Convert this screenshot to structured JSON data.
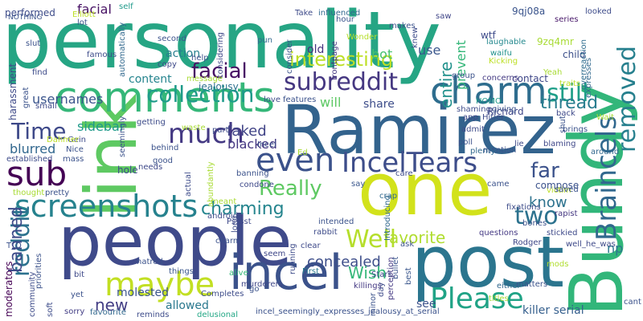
{
  "word_cloud": {
    "words": [
      {
        "text": "personality",
        "color": "#26a584"
      },
      {
        "text": "Ramirez",
        "color": "#33638d"
      },
      {
        "text": "people",
        "color": "#3f4a8a"
      },
      {
        "text": "one",
        "color": "#d2e21b"
      },
      {
        "text": "post",
        "color": "#2b758e"
      },
      {
        "text": "link",
        "color": "#5ec962"
      },
      {
        "text": "Bundy",
        "color": "#32b67a"
      },
      {
        "text": "comments",
        "color": "#35b779"
      },
      {
        "text": "incel",
        "color": "#3b528b"
      },
      {
        "text": "charm",
        "color": "#2e6d8e"
      },
      {
        "text": "maybe",
        "color": "#c2df23"
      },
      {
        "text": "screenshots",
        "color": "#26828e"
      },
      {
        "text": "sub",
        "color": "#440154"
      },
      {
        "text": "Please",
        "color": "#20a386"
      },
      {
        "text": "even",
        "color": "#3b528b"
      },
      {
        "text": "IncelTears",
        "color": "#3d4d8a"
      },
      {
        "text": "subreddit",
        "color": "#453781"
      },
      {
        "text": "collection",
        "color": "#1e9b8a"
      },
      {
        "text": "much",
        "color": "#443983"
      },
      {
        "text": "Braincels",
        "color": "#31688e"
      },
      {
        "text": "Well",
        "color": "#b5de2b"
      },
      {
        "text": "removed",
        "color": "#27808e"
      },
      {
        "text": "reddit",
        "color": "#2c728e"
      },
      {
        "text": "still",
        "color": "#1f9f88"
      },
      {
        "text": "Time",
        "color": "#3e4989"
      },
      {
        "text": "two",
        "color": "#2c728e"
      },
      {
        "text": "Really",
        "color": "#5ec962"
      },
      {
        "text": "facial",
        "color": "#471164"
      },
      {
        "text": "interesting",
        "color": "#bddf26"
      },
      {
        "text": "entire",
        "color": "#21918c"
      },
      {
        "text": "thread",
        "color": "#287d8e"
      },
      {
        "text": "banned",
        "color": "#3e4c8a"
      },
      {
        "text": "far",
        "color": "#3b528b"
      },
      {
        "text": "charming",
        "color": "#25858e"
      },
      {
        "text": "favorite",
        "color": "#b0dd2f"
      },
      {
        "text": "concealed",
        "color": "#3d4e8a"
      },
      {
        "text": "new",
        "color": "#433e85"
      },
      {
        "text": "Wish",
        "color": "#35b779"
      },
      {
        "text": "know",
        "color": "#2c728e"
      },
      {
        "text": "faked",
        "color": "#414487"
      },
      {
        "text": "blacked",
        "color": "#453882"
      },
      {
        "text": "sidebar",
        "color": "#1f9a8a"
      },
      {
        "text": "blurred",
        "color": "#31678e"
      },
      {
        "text": "usernames",
        "color": "#3a548c"
      },
      {
        "text": "content",
        "color": "#25848e"
      },
      {
        "text": "action",
        "color": "#277f8e"
      },
      {
        "text": "bot",
        "color": "#46c06f"
      },
      {
        "text": "use",
        "color": "#39568c"
      },
      {
        "text": "will",
        "color": "#5cc863"
      },
      {
        "text": "share",
        "color": "#3d4d8a"
      },
      {
        "text": "np",
        "color": "#2a768e"
      },
      {
        "text": "allowed",
        "color": "#2a788e"
      },
      {
        "text": "see",
        "color": "#3b528b"
      },
      {
        "text": "molested",
        "color": "#3a548c"
      },
      {
        "text": "killer serial",
        "color": "#355f8d"
      },
      {
        "text": "prevent",
        "color": "#35b779"
      },
      {
        "text": "old",
        "color": "#46327e"
      },
      {
        "text": "Richard",
        "color": "#3f4788"
      },
      {
        "text": "compose",
        "color": "#3b528b"
      },
      {
        "text": "harassment",
        "color": "#3e4a89"
      },
      {
        "text": "moderators",
        "color": "#440154"
      },
      {
        "text": "jealousy",
        "color": "#2d708e"
      },
      {
        "text": "Wonder",
        "color": "#b5de2b"
      },
      {
        "text": "contact",
        "color": "#3f4788"
      },
      {
        "text": "child",
        "color": "#3c4f8a"
      },
      {
        "text": "concerns",
        "color": "#443a83"
      },
      {
        "text": "expresses",
        "color": "#31688e"
      },
      {
        "text": "overreaction",
        "color": "#2f6c8e"
      },
      {
        "text": "9qj08a",
        "color": "#3a548c"
      },
      {
        "text": "9zq4mr",
        "color": "#a8db34"
      },
      {
        "text": "wtf",
        "color": "#3e4c8a"
      },
      {
        "text": "series",
        "color": "#48186a"
      },
      {
        "text": "laughable",
        "color": "#23898e"
      },
      {
        "text": "waifu",
        "color": "#21918c"
      },
      {
        "text": "frontpage",
        "color": "#453781"
      },
      {
        "text": "pun",
        "color": "#31688e"
      },
      {
        "text": "hour",
        "color": "#3a548c"
      },
      {
        "text": "saw",
        "color": "#404688"
      },
      {
        "text": "performed",
        "color": "#3e4c8a"
      },
      {
        "text": "facial",
        "color": "#471164"
      },
      {
        "text": "Elliott",
        "color": "#bddf26"
      },
      {
        "text": "NOTHING",
        "color": "#3b528b"
      },
      {
        "text": "self",
        "color": "#1f9a8a"
      },
      {
        "text": "Take",
        "color": "#3e4a89"
      },
      {
        "text": "influenced",
        "color": "#31688e"
      },
      {
        "text": "incel_seemingly_expresses_jealousy_at_serial",
        "color": "#3b528b"
      },
      {
        "text": "Completes",
        "color": "#3e4c8a"
      },
      {
        "text": "delusional",
        "color": "#22a785"
      },
      {
        "text": "reminds",
        "color": "#3e4c8a"
      },
      {
        "text": "favourite",
        "color": "#31688e"
      },
      {
        "text": "sorry",
        "color": "#433e85"
      },
      {
        "text": "yet",
        "color": "#3b528b"
      },
      {
        "text": "alive",
        "color": "#35b779"
      },
      {
        "text": "things",
        "color": "#39568c"
      },
      {
        "text": "bit",
        "color": "#3e4989"
      },
      {
        "text": "hatred",
        "color": "#3b528b"
      },
      {
        "text": "murderers",
        "color": "#3f4788"
      },
      {
        "text": "killings",
        "color": "#443983"
      },
      {
        "text": "Stars",
        "color": "#3e4c8a"
      },
      {
        "text": "First",
        "color": "#2a788e"
      },
      {
        "text": "matters",
        "color": "#3b528b"
      },
      {
        "text": "titles",
        "color": "#a8db34"
      },
      {
        "text": "either",
        "color": "#31688e"
      },
      {
        "text": "mods",
        "color": "#b0dd2f"
      },
      {
        "text": "bullet",
        "color": "#3a548c"
      },
      {
        "text": "questions",
        "color": "#443983"
      },
      {
        "text": "Rodger",
        "color": "#3f4788"
      },
      {
        "text": "stickied",
        "color": "#3e4989"
      },
      {
        "text": "bones",
        "color": "#3b528b"
      },
      {
        "text": "fixations",
        "color": "#3e4c8a"
      },
      {
        "text": "victim",
        "color": "#bddf26"
      },
      {
        "text": "rapist",
        "color": "#453781"
      },
      {
        "text": "came",
        "color": "#3b528b"
      },
      {
        "text": "crap",
        "color": "#31688e"
      },
      {
        "text": "android",
        "color": "#3e4c8a"
      },
      {
        "text": "intended",
        "color": "#3b528b"
      },
      {
        "text": "clear",
        "color": "#3e4989"
      },
      {
        "text": "seem",
        "color": "#3f4788"
      },
      {
        "text": "charm",
        "color": "#3b528b"
      },
      {
        "text": "meant",
        "color": "#a8db34"
      },
      {
        "text": "rabbit",
        "color": "#3e4c8a"
      },
      {
        "text": "Introducing",
        "color": "#31688e"
      },
      {
        "text": "ask",
        "color": "#3b528b"
      },
      {
        "text": "best",
        "color": "#39568c"
      },
      {
        "text": "perception",
        "color": "#443983"
      },
      {
        "text": "running",
        "color": "#3e4c8a"
      },
      {
        "text": "saved",
        "color": "#3b528b"
      },
      {
        "text": "blaming",
        "color": "#3f4788"
      },
      {
        "text": "lie",
        "color": "#3e4989"
      },
      {
        "text": "brings",
        "color": "#3b528b"
      },
      {
        "text": "around",
        "color": "#31688e"
      },
      {
        "text": "care",
        "color": "#3e4c8a"
      },
      {
        "text": "say",
        "color": "#39568c"
      },
      {
        "text": "mention",
        "color": "#3b528b"
      },
      {
        "text": "Hitler",
        "color": "#3e4c8a"
      },
      {
        "text": "HOMO",
        "color": "#1f9a8a"
      },
      {
        "text": "poll",
        "color": "#3b528b"
      },
      {
        "text": "plenty",
        "color": "#31688e"
      },
      {
        "text": "admit",
        "color": "#3e4c8a"
      },
      {
        "text": "app",
        "color": "#3f4788"
      },
      {
        "text": "shut",
        "color": "#3b528b"
      },
      {
        "text": "Wait",
        "color": "#a8db34"
      },
      {
        "text": "back",
        "color": "#3e4989"
      },
      {
        "text": "giving",
        "color": "#3b528b"
      },
      {
        "text": "shaming",
        "color": "#3e4c8a"
      },
      {
        "text": "features",
        "color": "#3b528b"
      },
      {
        "text": "love",
        "color": "#3e4c8a"
      },
      {
        "text": "group",
        "color": "#3b528b"
      },
      {
        "text": "traits",
        "color": "#bddf26"
      },
      {
        "text": "Yeah",
        "color": "#a8db34"
      },
      {
        "text": "Kicking",
        "color": "#bddf26"
      },
      {
        "text": "looked",
        "color": "#3e4c8a"
      },
      {
        "text": "consider",
        "color": "#3b528b"
      },
      {
        "text": "considering",
        "color": "#3e4989"
      },
      {
        "text": "makes",
        "color": "#3b528b"
      },
      {
        "text": "knew",
        "color": "#3e4c8a"
      },
      {
        "text": "waste",
        "color": "#a8db34"
      },
      {
        "text": "getting",
        "color": "#3e4c8a"
      },
      {
        "text": "help",
        "color": "#3b528b"
      },
      {
        "text": "copy",
        "color": "#3e4989"
      },
      {
        "text": "second",
        "color": "#3b528b"
      },
      {
        "text": "famous",
        "color": "#3e4c8a"
      },
      {
        "text": "automatically",
        "color": "#31688e"
      },
      {
        "text": "message",
        "color": "#a8db34"
      },
      {
        "text": "lot",
        "color": "#3b528b"
      },
      {
        "text": "find",
        "color": "#3e4c8a"
      },
      {
        "text": "slut",
        "color": "#3b528b"
      },
      {
        "text": "small",
        "color": "#3e4989"
      },
      {
        "text": "great",
        "color": "#3b528b"
      },
      {
        "text": "Gein",
        "color": "#3e4c8a"
      },
      {
        "text": "Nice",
        "color": "#3b528b"
      },
      {
        "text": "Dahmer",
        "color": "#bddf26"
      },
      {
        "text": "mass",
        "color": "#3b528b"
      },
      {
        "text": "established",
        "color": "#3e4c8a"
      },
      {
        "text": "good",
        "color": "#3b528b"
      },
      {
        "text": "needs",
        "color": "#3e4989"
      },
      {
        "text": "behind",
        "color": "#3b528b"
      },
      {
        "text": "hole",
        "color": "#3e4c8a"
      },
      {
        "text": "seemingly",
        "color": "#3b528b"
      },
      {
        "text": "actual",
        "color": "#3e4c8a"
      },
      {
        "text": "banning",
        "color": "#3b528b"
      },
      {
        "text": "condone",
        "color": "#3e4989"
      },
      {
        "text": "Ed",
        "color": "#a8db34"
      },
      {
        "text": "Incel",
        "color": "#3b528b"
      },
      {
        "text": "part",
        "color": "#3e4c8a"
      },
      {
        "text": "thought",
        "color": "#a8db34"
      },
      {
        "text": "pretty",
        "color": "#3b528b"
      },
      {
        "text": "long",
        "color": "#3e4c8a"
      },
      {
        "text": "T_D",
        "color": "#3b528b"
      },
      {
        "text": "Psssst",
        "color": "#3e4989"
      },
      {
        "text": "abundantly",
        "color": "#a8db34"
      },
      {
        "text": "priorities",
        "color": "#3b528b"
      },
      {
        "text": "community",
        "color": "#3e4c8a"
      },
      {
        "text": "go",
        "color": "#3b528b"
      },
      {
        "text": "day",
        "color": "#3e4c8a"
      },
      {
        "text": "minor",
        "color": "#3b528b"
      },
      {
        "text": "well_he_was",
        "color": "#3e4989"
      },
      {
        "text": "cant",
        "color": "#3b528b"
      },
      {
        "text": "soft",
        "color": "#3e4c8a"
      }
    ]
  }
}
